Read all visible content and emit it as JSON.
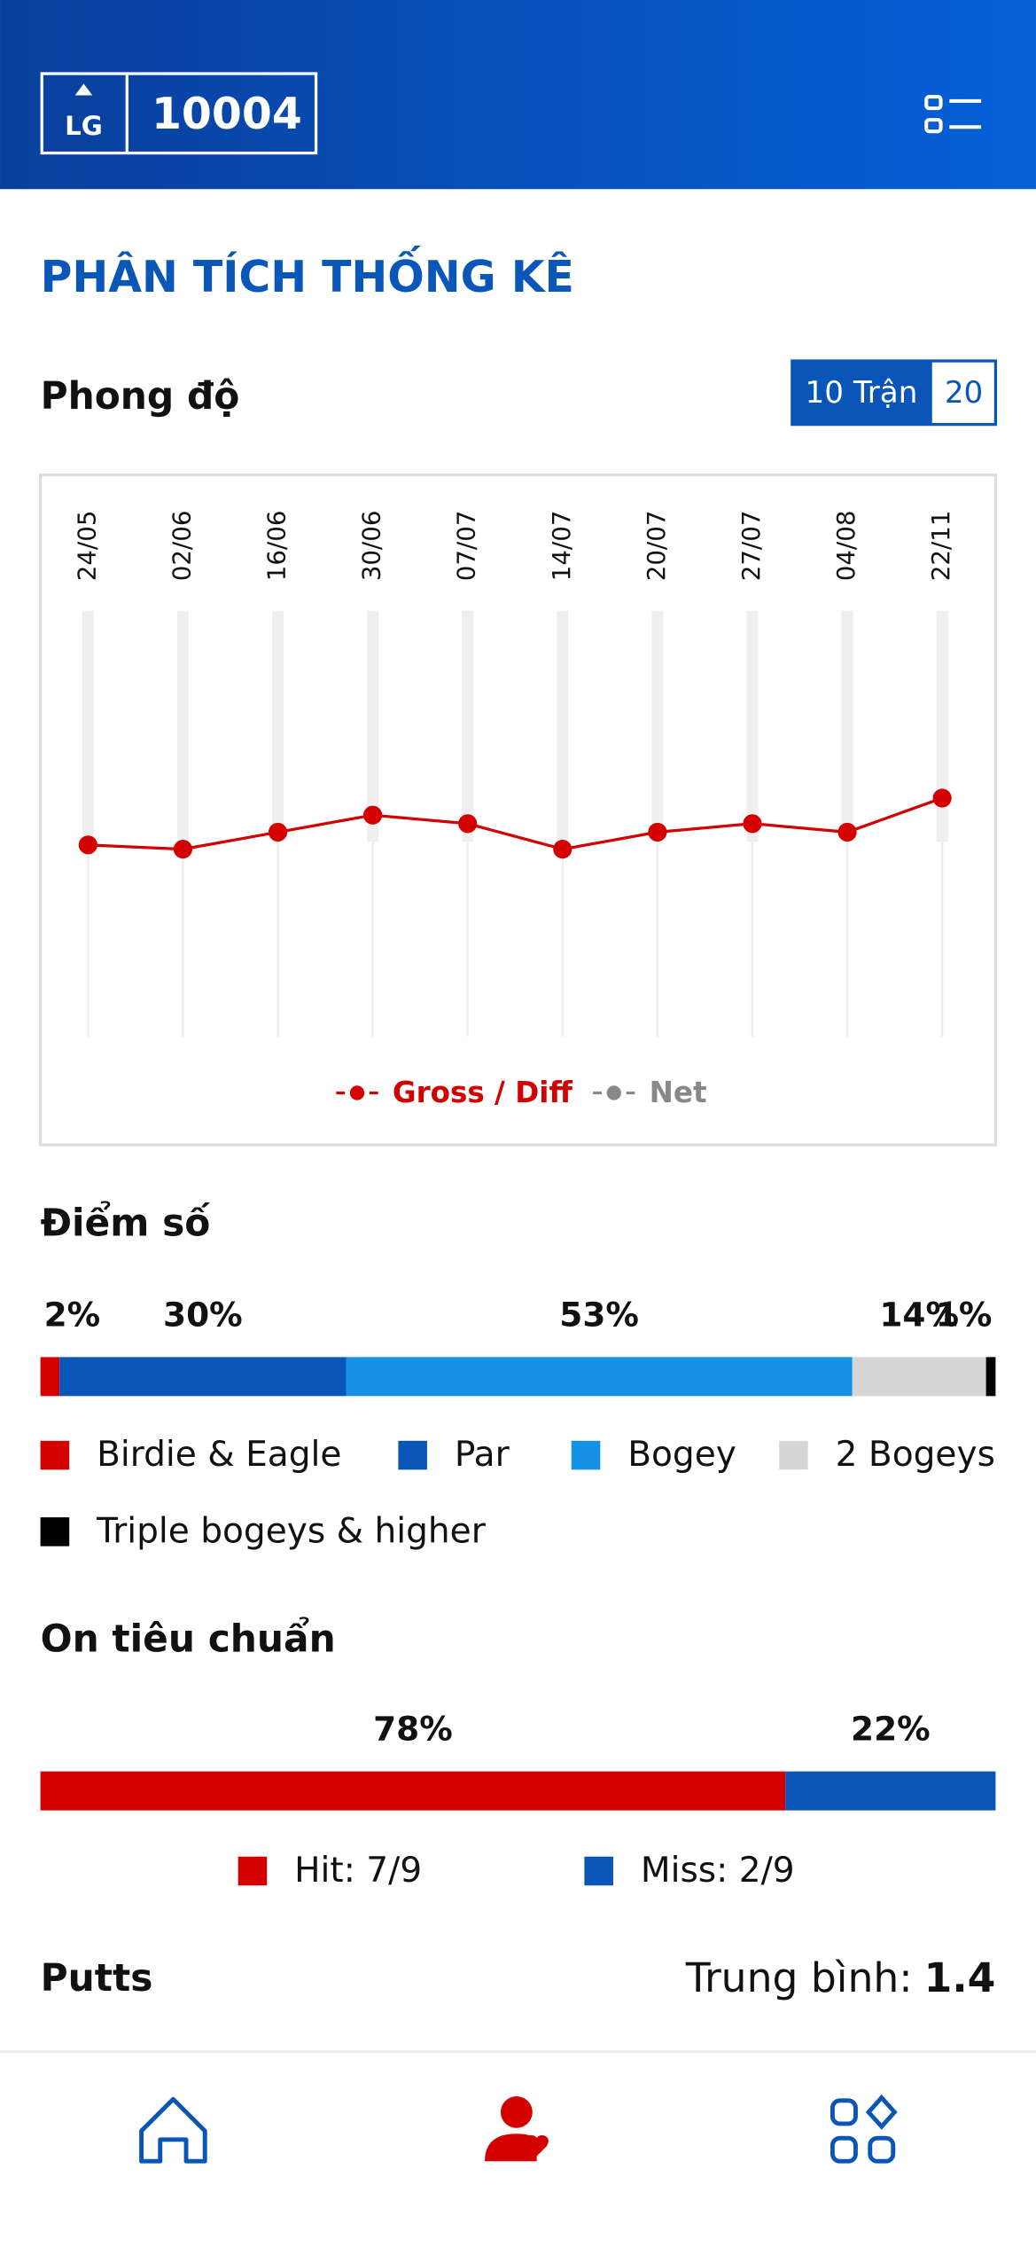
{
  "header": {
    "logo": "LG",
    "player_id": "10004"
  },
  "title": "PHÂN TÍCH THỐNG KÊ",
  "performance": {
    "heading": "Phong độ",
    "toggle": [
      "10 Trận",
      "20"
    ],
    "chart_data": {
      "type": "line",
      "categories": [
        "24/05",
        "02/06",
        "16/06",
        "30/06",
        "07/07",
        "14/07",
        "20/07",
        "27/07",
        "04/08",
        "22/11"
      ],
      "series": [
        {
          "name": "Gross / Diff",
          "color": "#d40000",
          "values": [
            45,
            44,
            48,
            52,
            50,
            44,
            48,
            50,
            48,
            56
          ]
        },
        {
          "name": "Net",
          "color": "#888888",
          "values": [
            null,
            null,
            null,
            null,
            null,
            null,
            null,
            null,
            null,
            null
          ]
        }
      ],
      "ylim": [
        0,
        100
      ]
    }
  },
  "scores": {
    "heading": "Điểm số",
    "chart_data": {
      "type": "stacked-bar",
      "categories": [
        "Birdie & Eagle",
        "Par",
        "Bogey",
        "2 Bogeys",
        "Triple bogeys & higher"
      ],
      "values": [
        2,
        30,
        53,
        14,
        1
      ],
      "value_labels": [
        "2%",
        "30%",
        "53%",
        "14%",
        "1%"
      ],
      "colors": [
        "#d40000",
        "#0a55b8",
        "#1592e6",
        "#d6d6d6",
        "#000000"
      ]
    }
  },
  "greens": {
    "heading": "On tiêu chuẩn",
    "chart_data": {
      "type": "stacked-bar",
      "categories": [
        "Hit: 7/9",
        "Miss: 2/9"
      ],
      "values": [
        78,
        22
      ],
      "value_labels": [
        "78%",
        "22%"
      ],
      "colors": [
        "#d40000",
        "#0a55b8"
      ]
    }
  },
  "putts": {
    "heading": "Putts",
    "average_label": "Trung bình:",
    "average": 1.4
  }
}
